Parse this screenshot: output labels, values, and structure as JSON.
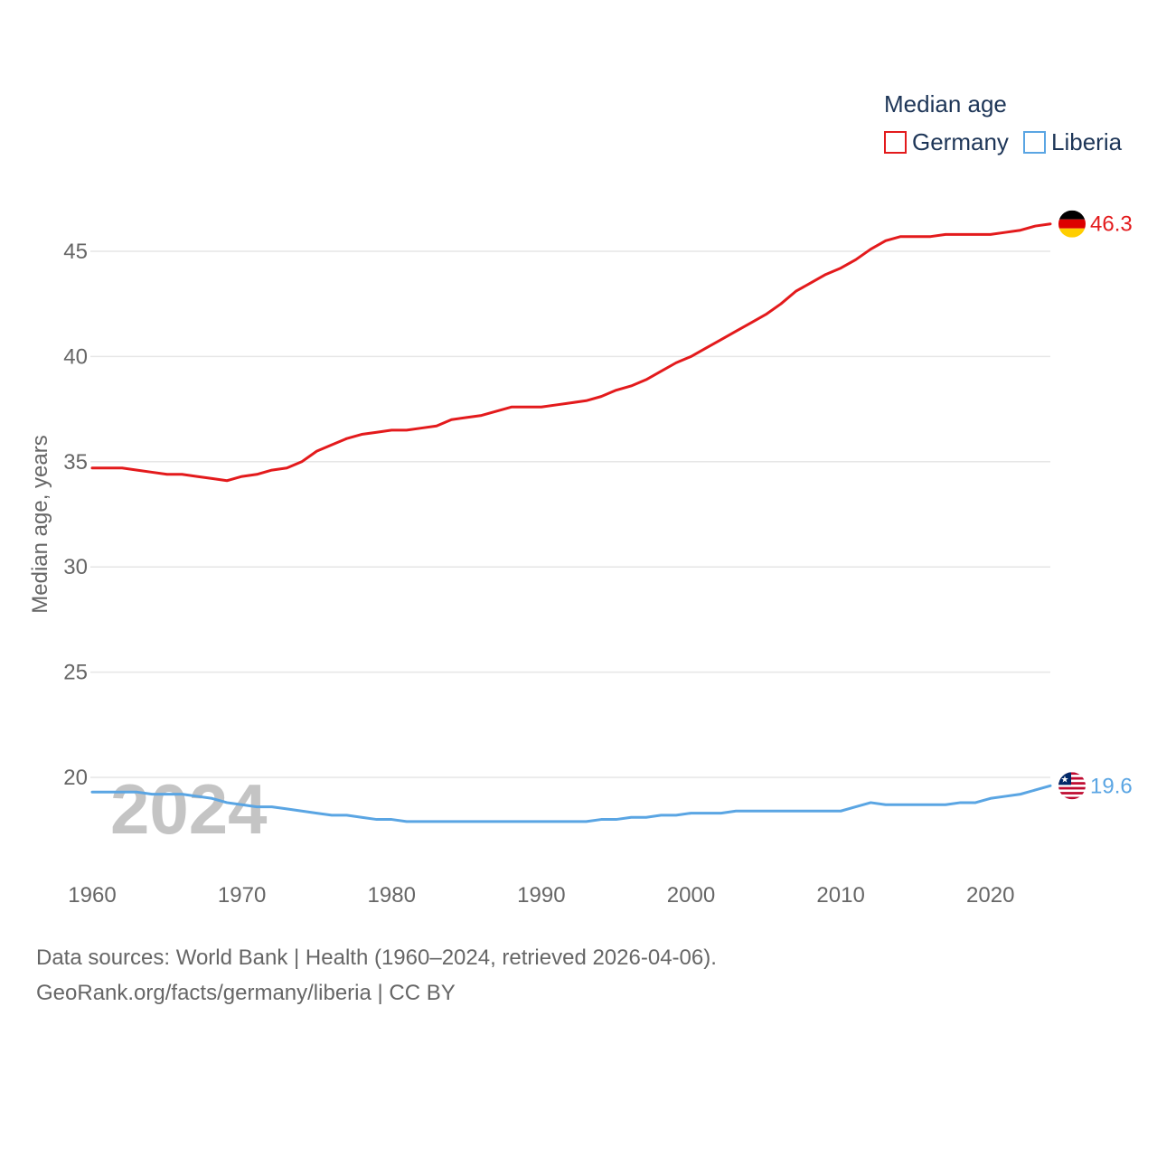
{
  "chart_data": {
    "type": "line",
    "title": "Median age",
    "xlabel": "",
    "ylabel": "Median age, years",
    "xlim": [
      1960,
      2024
    ],
    "ylim": [
      16.5,
      48
    ],
    "x_ticks": [
      1960,
      1970,
      1980,
      1990,
      2000,
      2010,
      2020
    ],
    "y_ticks": [
      20,
      25,
      30,
      35,
      40,
      45
    ],
    "grid": true,
    "legend_position": "top-right",
    "current_year": "2024",
    "x": [
      1960,
      1961,
      1962,
      1963,
      1964,
      1965,
      1966,
      1967,
      1968,
      1969,
      1970,
      1971,
      1972,
      1973,
      1974,
      1975,
      1976,
      1977,
      1978,
      1979,
      1980,
      1981,
      1982,
      1983,
      1984,
      1985,
      1986,
      1987,
      1988,
      1989,
      1990,
      1991,
      1992,
      1993,
      1994,
      1995,
      1996,
      1997,
      1998,
      1999,
      2000,
      2001,
      2002,
      2003,
      2004,
      2005,
      2006,
      2007,
      2008,
      2009,
      2010,
      2011,
      2012,
      2013,
      2014,
      2015,
      2016,
      2017,
      2018,
      2019,
      2020,
      2021,
      2022,
      2023,
      2024
    ],
    "series": [
      {
        "name": "Germany",
        "color": "#e31a1c",
        "end_label": "46.3",
        "flag": "germany-flag",
        "values": [
          34.7,
          34.7,
          34.7,
          34.6,
          34.5,
          34.4,
          34.4,
          34.3,
          34.2,
          34.1,
          34.3,
          34.4,
          34.6,
          34.7,
          35.0,
          35.5,
          35.8,
          36.1,
          36.3,
          36.4,
          36.5,
          36.5,
          36.6,
          36.7,
          37.0,
          37.1,
          37.2,
          37.4,
          37.6,
          37.6,
          37.6,
          37.7,
          37.8,
          37.9,
          38.1,
          38.4,
          38.6,
          38.9,
          39.3,
          39.7,
          40.0,
          40.4,
          40.8,
          41.2,
          41.6,
          42.0,
          42.5,
          43.1,
          43.5,
          43.9,
          44.2,
          44.6,
          45.1,
          45.5,
          45.7,
          45.7,
          45.7,
          45.8,
          45.8,
          45.8,
          45.8,
          45.9,
          46.0,
          46.2,
          46.3
        ]
      },
      {
        "name": "Liberia",
        "color": "#5aa5e3",
        "end_label": "19.6",
        "flag": "liberia-flag",
        "values": [
          19.3,
          19.3,
          19.3,
          19.3,
          19.2,
          19.2,
          19.2,
          19.1,
          19.0,
          18.8,
          18.7,
          18.6,
          18.6,
          18.5,
          18.4,
          18.3,
          18.2,
          18.2,
          18.1,
          18.0,
          18.0,
          17.9,
          17.9,
          17.9,
          17.9,
          17.9,
          17.9,
          17.9,
          17.9,
          17.9,
          17.9,
          17.9,
          17.9,
          17.9,
          18.0,
          18.0,
          18.1,
          18.1,
          18.2,
          18.2,
          18.3,
          18.3,
          18.3,
          18.4,
          18.4,
          18.4,
          18.4,
          18.4,
          18.4,
          18.4,
          18.4,
          18.6,
          18.8,
          18.7,
          18.7,
          18.7,
          18.7,
          18.7,
          18.8,
          18.8,
          19.0,
          19.1,
          19.2,
          19.4,
          19.6
        ]
      }
    ]
  },
  "footer": {
    "line1": "Data sources: World Bank | Health (1960–2024, retrieved 2026-04-06).",
    "line2": "GeoRank.org/facts/germany/liberia | CC BY"
  }
}
